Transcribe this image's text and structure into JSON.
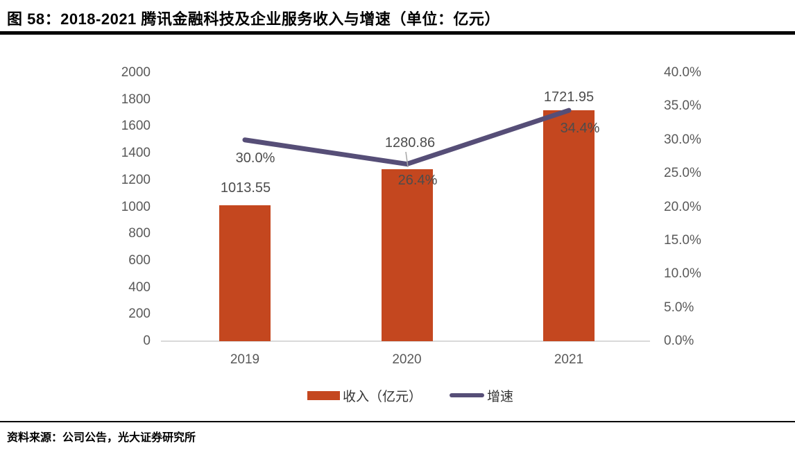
{
  "title": "图 58：2018-2021 腾讯金融科技及企业服务收入与增速（单位：亿元）",
  "source": "资料来源：公司公告，光大证券研究所",
  "colors": {
    "bar": "#C4471F",
    "line": "#564E77",
    "axis_line": "#D9D9D9",
    "axis_text": "#595959",
    "data_label_text": "#4C4C4C",
    "leader_line": "#A6A6A6",
    "title_text": "#000000"
  },
  "chart_data": {
    "type": "bar+line combo",
    "categories": [
      "2019",
      "2020",
      "2021"
    ],
    "series": [
      {
        "name": "收入（亿元）",
        "type": "bar",
        "axis": "left",
        "values": [
          1013.55,
          1280.86,
          1721.95
        ],
        "labels": [
          "1013.55",
          "1280.86",
          "1721.95"
        ]
      },
      {
        "name": "增速",
        "type": "line",
        "axis": "right",
        "values": [
          30.0,
          26.4,
          34.4
        ],
        "labels": [
          "30.0%",
          "26.4%",
          "34.4%"
        ]
      }
    ],
    "left_axis": {
      "min": 0,
      "max": 2000,
      "step": 200,
      "ticks": [
        "2000",
        "1800",
        "1600",
        "1400",
        "1200",
        "1000",
        "800",
        "600",
        "400",
        "200",
        "0"
      ]
    },
    "right_axis": {
      "min": 0,
      "max": 40,
      "step": 5,
      "ticks": [
        "40.0%",
        "35.0%",
        "30.0%",
        "25.0%",
        "20.0%",
        "15.0%",
        "10.0%",
        "5.0%",
        "0.0%"
      ]
    },
    "legend": [
      {
        "label": "收入（亿元）",
        "swatch": "bar"
      },
      {
        "label": "增速",
        "swatch": "line"
      }
    ],
    "grid": "off",
    "legend_position": "bottom"
  }
}
